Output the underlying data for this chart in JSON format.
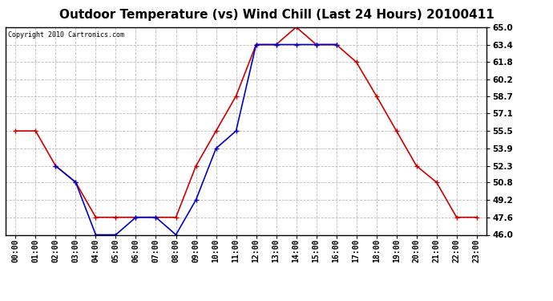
{
  "title": "Outdoor Temperature (vs) Wind Chill (Last 24 Hours) 20100411",
  "copyright": "Copyright 2010 Cartronics.com",
  "hours": [
    "00:00",
    "01:00",
    "02:00",
    "03:00",
    "04:00",
    "05:00",
    "06:00",
    "07:00",
    "08:00",
    "09:00",
    "10:00",
    "11:00",
    "12:00",
    "13:00",
    "14:00",
    "15:00",
    "16:00",
    "17:00",
    "18:00",
    "19:00",
    "20:00",
    "21:00",
    "22:00",
    "23:00"
  ],
  "temp": [
    55.5,
    55.5,
    52.3,
    50.8,
    47.6,
    47.6,
    47.6,
    47.6,
    47.6,
    52.3,
    55.5,
    58.7,
    63.4,
    63.4,
    65.0,
    63.4,
    63.4,
    61.8,
    58.7,
    55.5,
    52.3,
    50.8,
    47.6,
    47.6
  ],
  "windchill": [
    null,
    null,
    52.3,
    50.8,
    46.0,
    46.0,
    47.6,
    47.6,
    46.0,
    49.2,
    53.9,
    55.5,
    63.4,
    63.4,
    63.4,
    63.4,
    63.4,
    null,
    null,
    null,
    null,
    null,
    null,
    null
  ],
  "temp_color": "#cc0000",
  "windchill_color": "#0000cc",
  "ylim": [
    46.0,
    65.0
  ],
  "yticks": [
    46.0,
    47.6,
    49.2,
    50.8,
    52.3,
    53.9,
    55.5,
    57.1,
    58.7,
    60.2,
    61.8,
    63.4,
    65.0
  ],
  "background_color": "#ffffff",
  "plot_bg_color": "#ffffff",
  "grid_color": "#bbbbbb",
  "title_fontsize": 11,
  "copyright_fontsize": 6,
  "marker": "+",
  "marker_size": 5,
  "line_width": 1.2
}
